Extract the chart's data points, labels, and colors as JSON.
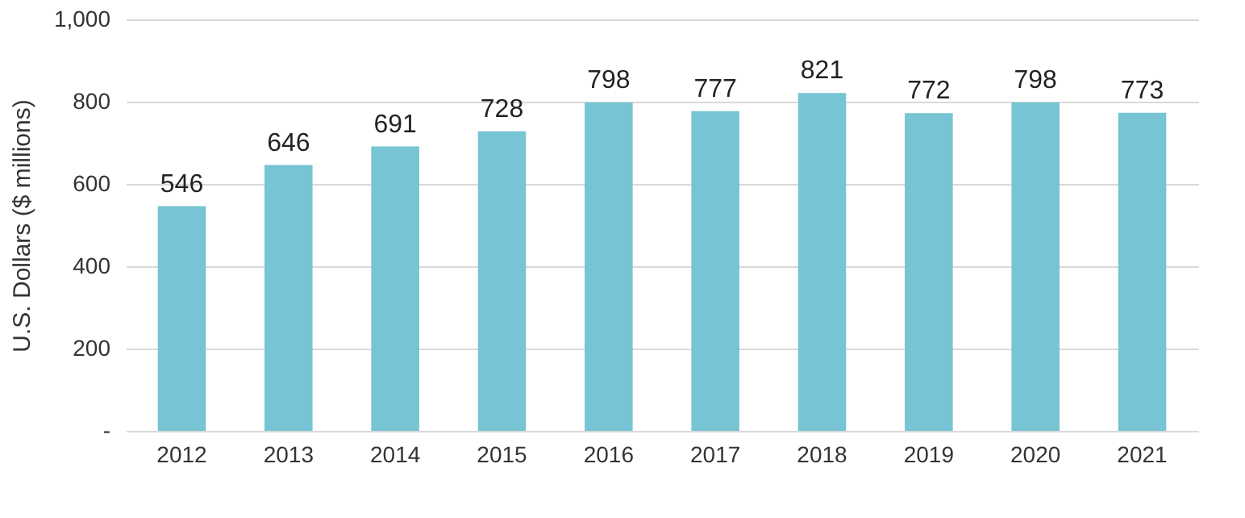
{
  "chart_data": {
    "type": "bar",
    "ylabel": "U.S. Dollars ($ millions)",
    "categories": [
      "2012",
      "2013",
      "2014",
      "2015",
      "2016",
      "2017",
      "2018",
      "2019",
      "2020",
      "2021"
    ],
    "values": [
      546,
      646,
      691,
      728,
      798,
      777,
      821,
      772,
      798,
      773
    ],
    "color": "#76c4d4",
    "ylim": [
      0,
      1000
    ],
    "yticks": [
      {
        "value": 0,
        "label": "-"
      },
      200,
      400,
      600,
      800,
      {
        "value": 1000,
        "label": "1,000"
      }
    ],
    "grid": "y",
    "data_labels": true
  }
}
